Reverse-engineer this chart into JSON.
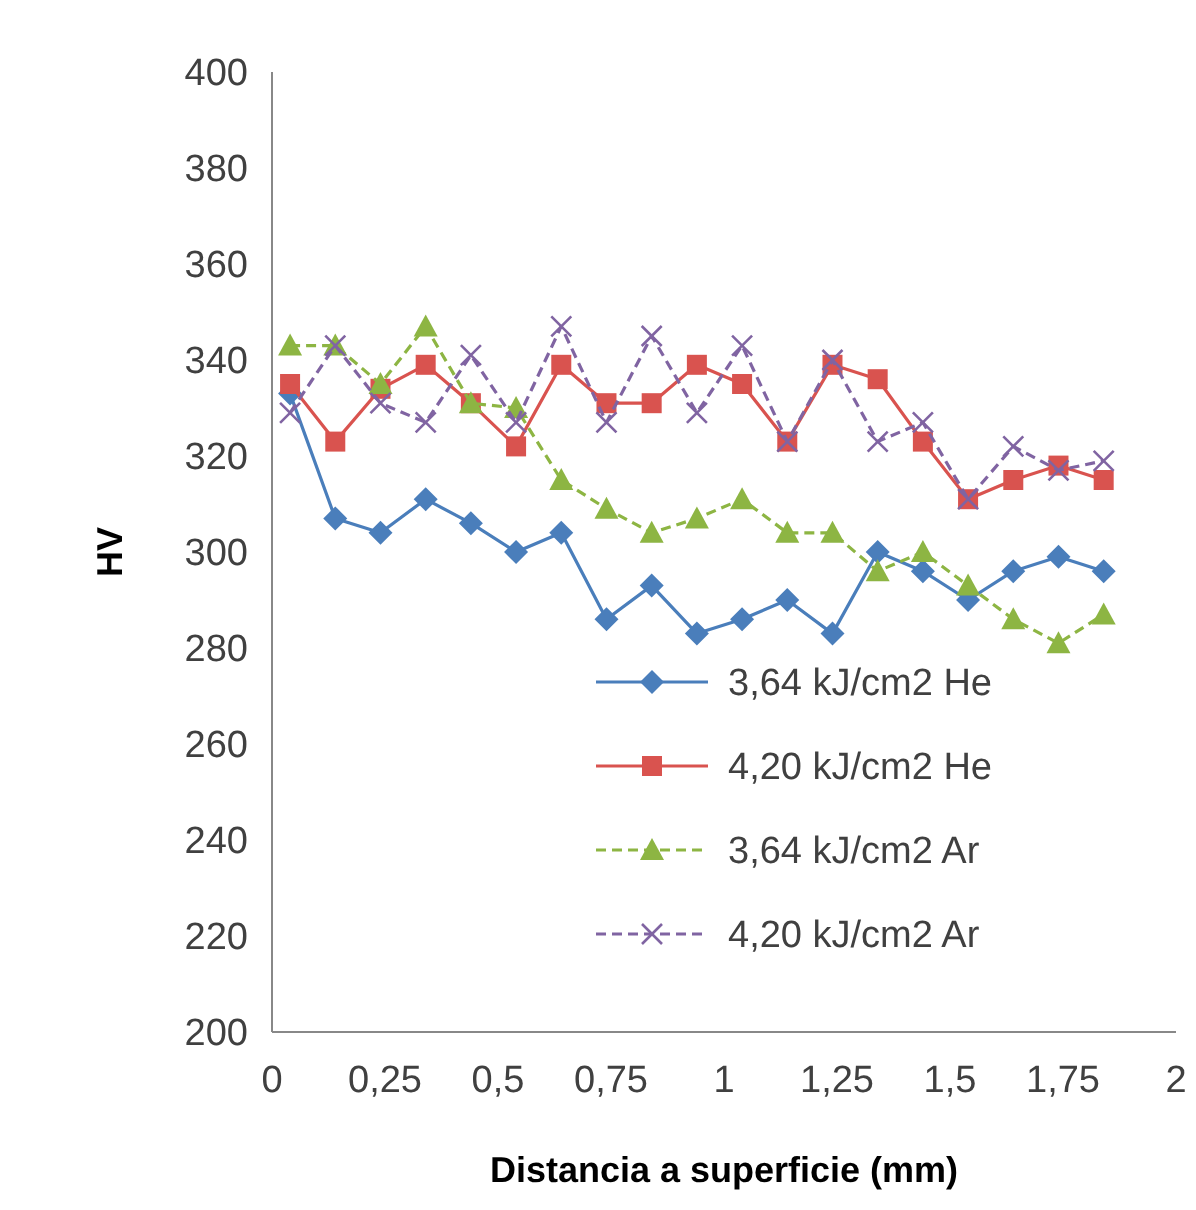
{
  "chart_data": {
    "type": "line",
    "xlabel": "Distancia a superficie (mm)",
    "ylabel": "HV",
    "x": [
      0.04,
      0.14,
      0.24,
      0.34,
      0.44,
      0.54,
      0.64,
      0.74,
      0.84,
      0.94,
      1.04,
      1.14,
      1.24,
      1.34,
      1.44,
      1.54,
      1.64,
      1.74,
      1.84
    ],
    "xlim": [
      0,
      2
    ],
    "xticks": [
      0,
      {
        "value": 0.25,
        "label": "0,25"
      },
      {
        "value": 0.5,
        "label": "0,5"
      },
      {
        "value": 0.75,
        "label": "0,75"
      },
      1,
      {
        "value": 1.25,
        "label": "1,25"
      },
      {
        "value": 1.5,
        "label": "1,5"
      },
      {
        "value": 1.75,
        "label": "1,75"
      },
      2
    ],
    "ylim": [
      200,
      400
    ],
    "yticks": [
      200,
      220,
      240,
      260,
      280,
      300,
      320,
      340,
      360,
      380,
      400
    ],
    "grid": false,
    "legend": "bottom right",
    "series": [
      {
        "name": "3,64 kJ/cm2 He",
        "color": "#4a7ebb",
        "marker": "diamond",
        "line_style": "solid",
        "values": [
          333,
          307,
          304,
          311,
          306,
          300,
          304,
          286,
          293,
          283,
          286,
          290,
          283,
          300,
          296,
          290,
          296,
          299,
          296
        ]
      },
      {
        "name": "4,20 kJ/cm2 He",
        "color": "#d9534f",
        "marker": "square",
        "line_style": "solid",
        "values": [
          335,
          323,
          334,
          339,
          331,
          322,
          339,
          331,
          331,
          339,
          335,
          323,
          339,
          336,
          323,
          311,
          315,
          318,
          315
        ]
      },
      {
        "name": "3,64 kJ/cm2 Ar",
        "color": "#8db543",
        "marker": "triangle",
        "line_style": "dashed",
        "values": [
          343,
          343,
          335,
          347,
          331,
          330,
          315,
          309,
          304,
          307,
          311,
          304,
          304,
          296,
          300,
          293,
          286,
          281,
          287
        ]
      },
      {
        "name": "4,20 kJ/cm2 Ar",
        "color": "#8064a2",
        "marker": "cross",
        "line_style": "dashed",
        "values": [
          329,
          343,
          331,
          327,
          341,
          327,
          347,
          327,
          345,
          329,
          343,
          323,
          340,
          323,
          327,
          311,
          322,
          317,
          319
        ]
      }
    ]
  }
}
